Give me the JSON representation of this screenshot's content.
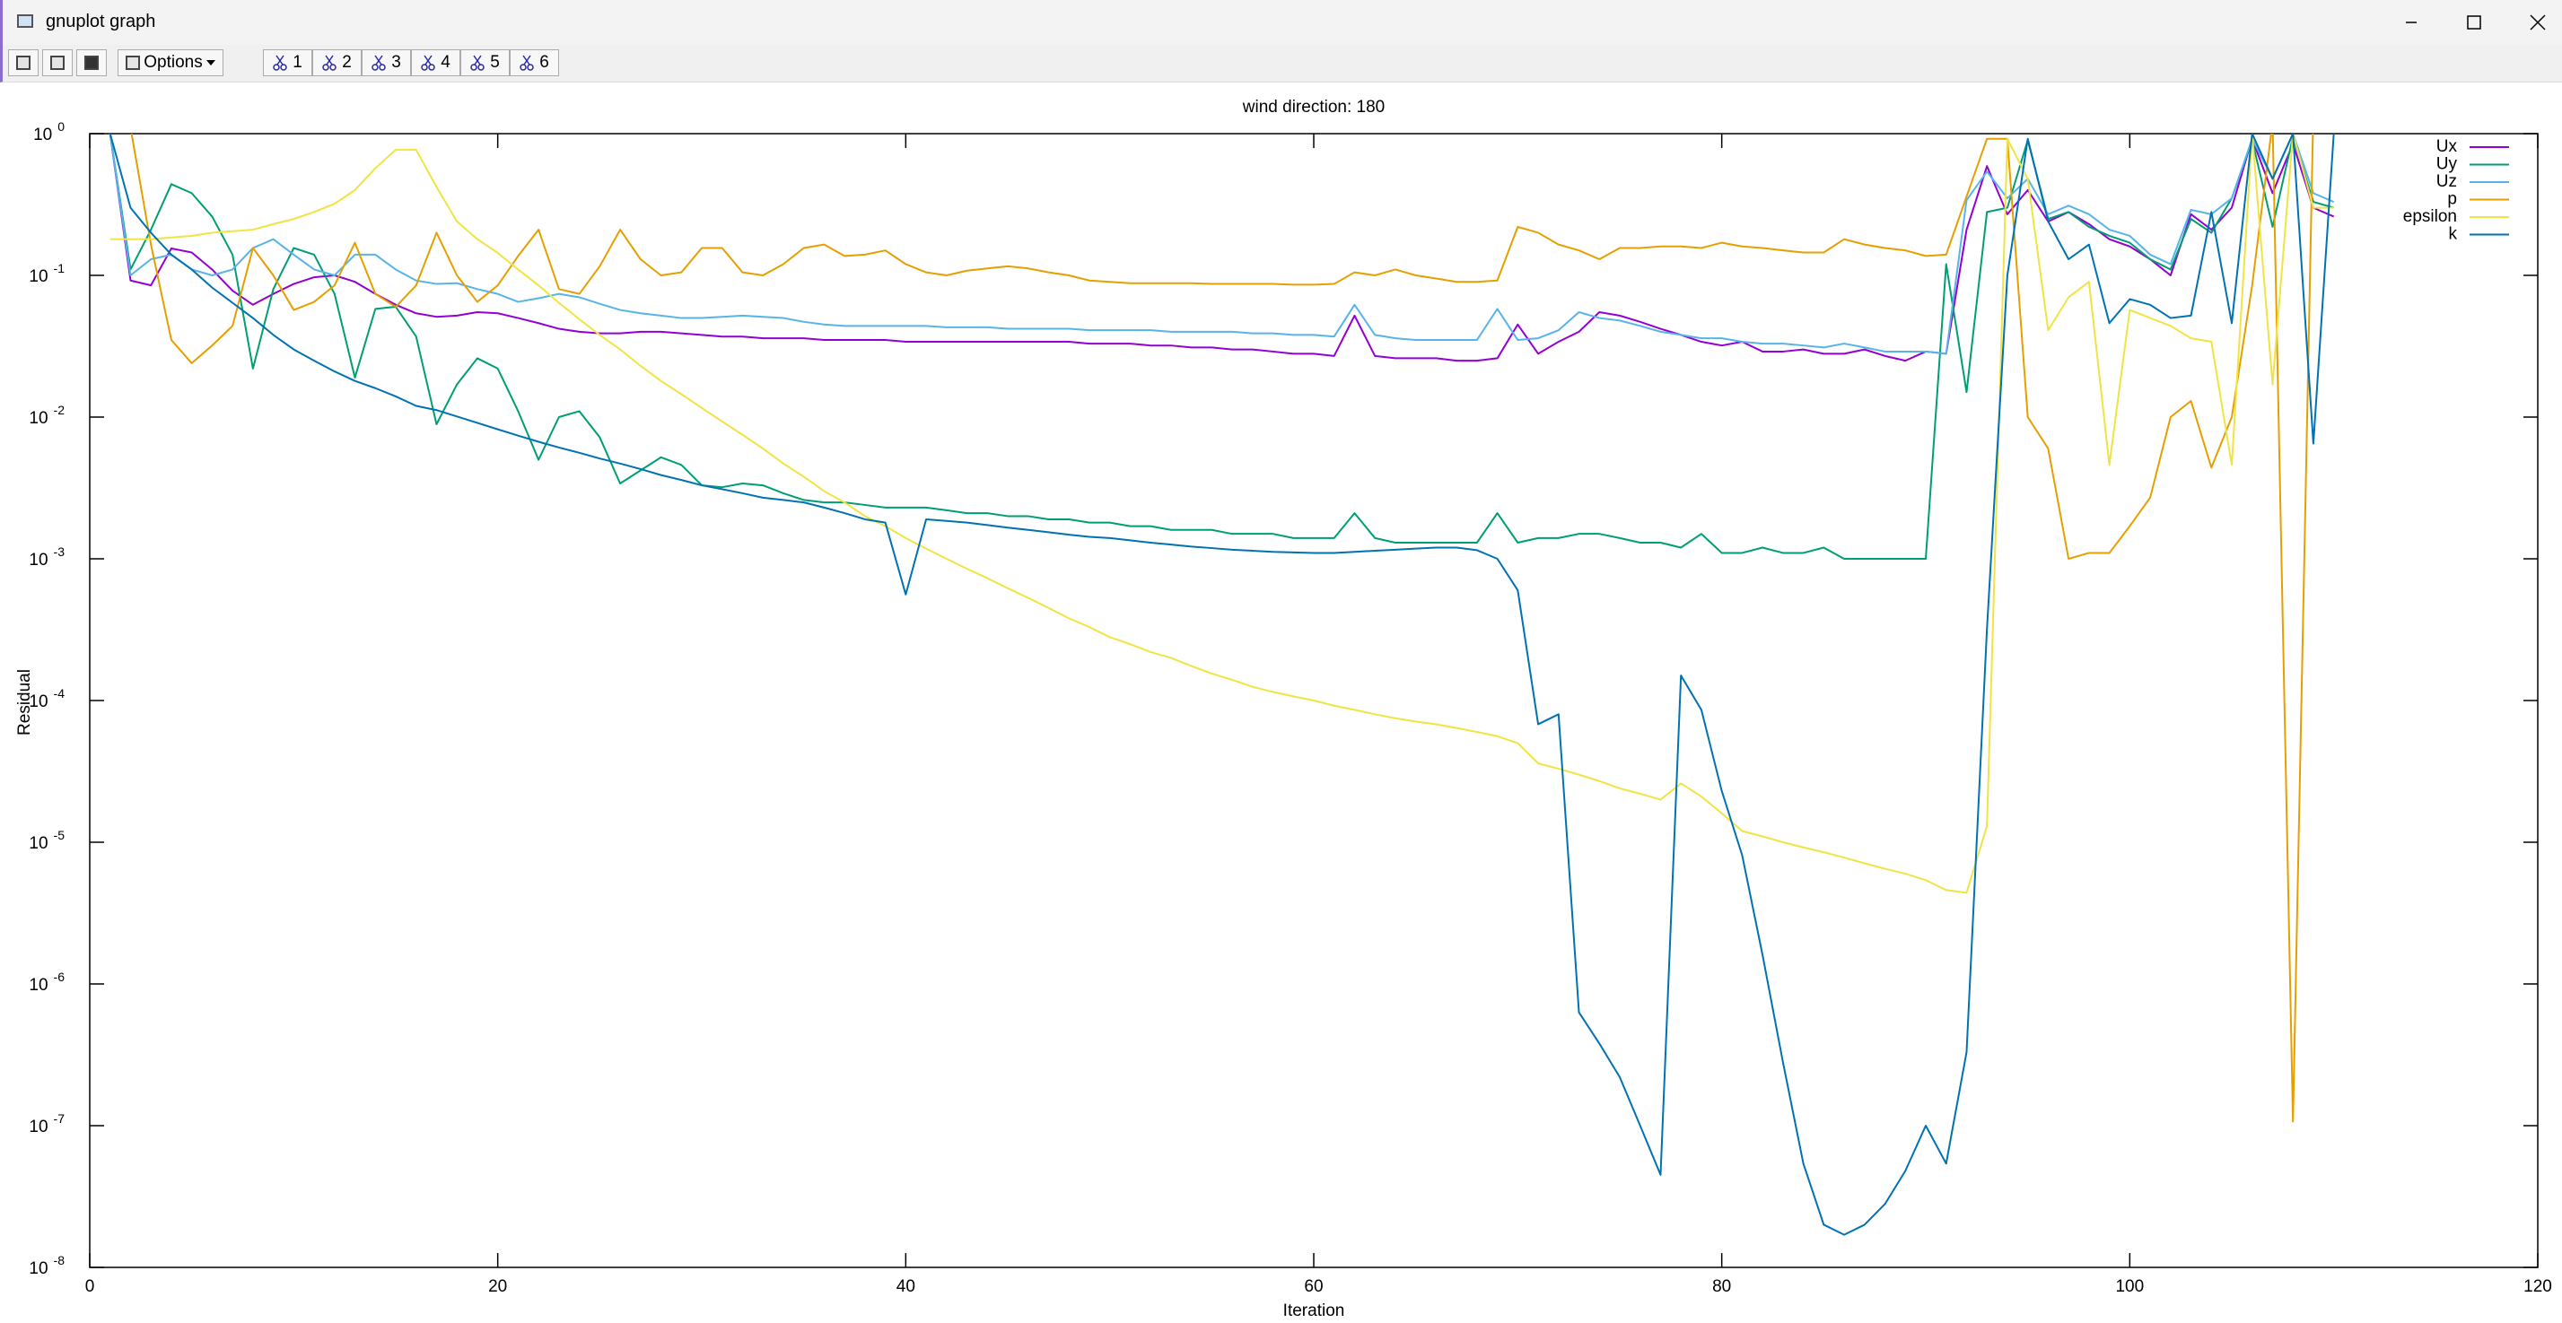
{
  "window": {
    "title": "gnuplot graph",
    "toolbar": {
      "options": "Options",
      "plots": [
        "1",
        "2",
        "3",
        "4",
        "5",
        "6"
      ]
    }
  },
  "chart_data": {
    "type": "line",
    "title": "wind direction: 180",
    "x_label": "Iteration",
    "y_label": "Residual",
    "log_y": true,
    "grid": false,
    "legend": "top-right",
    "xlim": [
      0,
      120
    ],
    "xticks": [
      0,
      20,
      40,
      60,
      80,
      100,
      120
    ],
    "ylim": [
      1e-08,
      1
    ],
    "yticks": [
      {
        "value": 1,
        "label": "10",
        "exponent": 0
      },
      {
        "value": 0.1,
        "label": "10",
        "exponent": -1
      },
      {
        "value": 0.01,
        "label": "10",
        "exponent": -2
      },
      {
        "value": 0.001,
        "label": "10",
        "exponent": -3
      },
      {
        "value": 0.0001,
        "label": "10",
        "exponent": -4
      },
      {
        "value": 1e-05,
        "label": "10",
        "exponent": -5
      },
      {
        "value": 1e-06,
        "label": "10",
        "exponent": -6
      },
      {
        "value": 1e-07,
        "label": "10",
        "exponent": -7
      },
      {
        "value": 1e-08,
        "label": "10",
        "exponent": -8
      }
    ],
    "x": [
      1,
      2,
      3,
      4,
      5,
      6,
      7,
      8,
      9,
      10,
      11,
      12,
      13,
      14,
      15,
      16,
      17,
      18,
      19,
      20,
      21,
      22,
      23,
      24,
      25,
      26,
      27,
      28,
      29,
      30,
      31,
      32,
      33,
      34,
      35,
      36,
      37,
      38,
      39,
      40,
      41,
      42,
      43,
      44,
      45,
      46,
      47,
      48,
      49,
      50,
      51,
      52,
      53,
      54,
      55,
      56,
      57,
      58,
      59,
      60,
      61,
      62,
      63,
      64,
      65,
      66,
      67,
      68,
      69,
      70,
      71,
      72,
      73,
      74,
      75,
      76,
      77,
      78,
      79,
      80,
      81,
      82,
      83,
      84,
      85,
      86,
      87,
      88,
      89,
      90,
      91,
      92,
      93,
      94,
      95,
      96,
      97,
      98,
      99,
      100,
      101,
      102,
      103,
      104,
      105,
      106,
      107,
      108,
      109,
      110
    ],
    "series": [
      {
        "name": "Ux",
        "color": "#9400d3",
        "values": [
          1,
          0.092,
          0.085,
          0.155,
          0.145,
          0.11,
          0.078,
          0.062,
          0.074,
          0.087,
          0.097,
          0.1,
          0.09,
          0.074,
          0.062,
          0.054,
          0.051,
          0.052,
          0.055,
          0.054,
          0.05,
          0.046,
          0.042,
          0.04,
          0.039,
          0.039,
          0.04,
          0.04,
          0.039,
          0.038,
          0.037,
          0.037,
          0.036,
          0.036,
          0.036,
          0.035,
          0.035,
          0.035,
          0.035,
          0.034,
          0.034,
          0.034,
          0.034,
          0.034,
          0.034,
          0.034,
          0.034,
          0.034,
          0.033,
          0.033,
          0.033,
          0.032,
          0.032,
          0.031,
          0.031,
          0.03,
          0.03,
          0.029,
          0.028,
          0.028,
          0.027,
          0.052,
          0.027,
          0.026,
          0.026,
          0.026,
          0.025,
          0.025,
          0.026,
          0.045,
          0.028,
          0.034,
          0.04,
          0.055,
          0.052,
          0.047,
          0.042,
          0.038,
          0.034,
          0.032,
          0.034,
          0.029,
          0.029,
          0.03,
          0.028,
          0.028,
          0.03,
          0.027,
          0.025,
          0.029,
          0.028,
          0.21,
          0.59,
          0.27,
          0.4,
          0.24,
          0.28,
          0.23,
          0.18,
          0.16,
          0.13,
          0.1,
          0.27,
          0.21,
          0.3,
          0.92,
          0.38,
          0.85,
          0.3,
          0.26
        ]
      },
      {
        "name": "Uy",
        "color": "#009e73",
        "values": [
          1,
          0.11,
          0.21,
          0.44,
          0.38,
          0.26,
          0.14,
          0.022,
          0.08,
          0.156,
          0.14,
          0.074,
          0.019,
          0.058,
          0.06,
          0.037,
          0.0089,
          0.017,
          0.026,
          0.022,
          0.011,
          0.005,
          0.01,
          0.011,
          0.0072,
          0.0034,
          0.0042,
          0.0052,
          0.0046,
          0.0033,
          0.0032,
          0.0034,
          0.0033,
          0.0029,
          0.0026,
          0.0025,
          0.0025,
          0.0024,
          0.0023,
          0.0023,
          0.0023,
          0.0022,
          0.0021,
          0.0021,
          0.002,
          0.002,
          0.0019,
          0.0019,
          0.0018,
          0.0018,
          0.0017,
          0.0017,
          0.0016,
          0.0016,
          0.0016,
          0.0015,
          0.0015,
          0.0015,
          0.0014,
          0.0014,
          0.0014,
          0.0021,
          0.0014,
          0.0013,
          0.0013,
          0.0013,
          0.0013,
          0.0013,
          0.0021,
          0.0013,
          0.0014,
          0.0014,
          0.0015,
          0.0015,
          0.0014,
          0.0013,
          0.0013,
          0.0012,
          0.0015,
          0.0011,
          0.0011,
          0.0012,
          0.0011,
          0.0011,
          0.0012,
          0.001,
          0.001,
          0.001,
          0.001,
          0.001,
          0.12,
          0.015,
          0.28,
          0.3,
          0.9,
          0.25,
          0.28,
          0.22,
          0.19,
          0.17,
          0.13,
          0.11,
          0.25,
          0.2,
          0.35,
          0.9,
          0.22,
          0.95,
          0.33,
          0.3
        ]
      },
      {
        "name": "Uz",
        "color": "#56b4e9",
        "values": [
          1,
          0.1,
          0.13,
          0.14,
          0.11,
          0.1,
          0.11,
          0.156,
          0.18,
          0.14,
          0.11,
          0.1,
          0.14,
          0.14,
          0.11,
          0.092,
          0.087,
          0.088,
          0.08,
          0.074,
          0.065,
          0.069,
          0.074,
          0.07,
          0.063,
          0.057,
          0.054,
          0.052,
          0.05,
          0.05,
          0.051,
          0.052,
          0.051,
          0.05,
          0.047,
          0.045,
          0.044,
          0.044,
          0.044,
          0.044,
          0.044,
          0.043,
          0.043,
          0.043,
          0.042,
          0.042,
          0.042,
          0.042,
          0.041,
          0.041,
          0.041,
          0.041,
          0.04,
          0.04,
          0.04,
          0.04,
          0.039,
          0.039,
          0.038,
          0.038,
          0.037,
          0.062,
          0.038,
          0.036,
          0.035,
          0.035,
          0.035,
          0.035,
          0.058,
          0.035,
          0.036,
          0.041,
          0.055,
          0.05,
          0.048,
          0.044,
          0.04,
          0.038,
          0.036,
          0.036,
          0.034,
          0.033,
          0.033,
          0.032,
          0.031,
          0.033,
          0.031,
          0.029,
          0.029,
          0.029,
          0.028,
          0.34,
          0.54,
          0.35,
          0.48,
          0.27,
          0.31,
          0.27,
          0.21,
          0.19,
          0.14,
          0.12,
          0.29,
          0.27,
          0.35,
          0.92,
          0.48,
          1,
          0.38,
          0.33
        ]
      },
      {
        "name": "p",
        "color": "#e69f00",
        "values": [
          1.2,
          1.1,
          0.165,
          0.035,
          0.024,
          0.032,
          0.044,
          0.156,
          0.1,
          0.057,
          0.065,
          0.085,
          0.17,
          0.074,
          0.06,
          0.085,
          0.2,
          0.1,
          0.065,
          0.085,
          0.137,
          0.21,
          0.08,
          0.074,
          0.116,
          0.21,
          0.13,
          0.1,
          0.105,
          0.156,
          0.156,
          0.105,
          0.1,
          0.12,
          0.156,
          0.165,
          0.137,
          0.14,
          0.15,
          0.12,
          0.105,
          0.1,
          0.108,
          0.112,
          0.116,
          0.112,
          0.105,
          0.1,
          0.092,
          0.09,
          0.088,
          0.088,
          0.088,
          0.088,
          0.087,
          0.087,
          0.087,
          0.087,
          0.086,
          0.086,
          0.087,
          0.105,
          0.1,
          0.11,
          0.1,
          0.095,
          0.09,
          0.09,
          0.092,
          0.22,
          0.2,
          0.165,
          0.15,
          0.13,
          0.156,
          0.156,
          0.16,
          0.16,
          0.156,
          0.17,
          0.16,
          0.156,
          0.15,
          0.145,
          0.145,
          0.18,
          0.165,
          0.156,
          0.15,
          0.137,
          0.14,
          0.36,
          0.92,
          0.92,
          0.01,
          0.006,
          0.001,
          0.0011,
          0.0011,
          0.0017,
          0.0027,
          0.01,
          0.013,
          0.0044,
          0.01,
          0.085,
          1.2,
          1.07e-07,
          1.5,
          2
        ]
      },
      {
        "name": "epsilon",
        "color": "#f0e442",
        "values": [
          0.18,
          0.18,
          0.18,
          0.185,
          0.19,
          0.2,
          0.205,
          0.21,
          0.23,
          0.25,
          0.28,
          0.32,
          0.4,
          0.57,
          0.77,
          0.77,
          0.42,
          0.24,
          0.18,
          0.144,
          0.11,
          0.085,
          0.064,
          0.049,
          0.038,
          0.03,
          0.023,
          0.018,
          0.0145,
          0.0116,
          0.0093,
          0.0075,
          0.006,
          0.0047,
          0.0038,
          0.003,
          0.0025,
          0.002,
          0.0017,
          0.0014,
          0.00118,
          0.001,
          0.00085,
          0.00073,
          0.00062,
          0.00053,
          0.00045,
          0.00038,
          0.00033,
          0.00028,
          0.00025,
          0.00022,
          0.0002,
          0.000175,
          0.000155,
          0.00014,
          0.000125,
          0.000115,
          0.000107,
          0.0001,
          9.2e-05,
          8.6e-05,
          8e-05,
          7.5e-05,
          7.1e-05,
          6.8e-05,
          6.4e-05,
          6e-05,
          5.6e-05,
          5e-05,
          3.6e-05,
          3.3e-05,
          3e-05,
          2.7e-05,
          2.4e-05,
          2.2e-05,
          2e-05,
          2.6e-05,
          2.1e-05,
          1.6e-05,
          1.2e-05,
          1.1e-05,
          1e-05,
          9.2e-06,
          8.5e-06,
          7.8e-06,
          7.1e-06,
          6.5e-06,
          6e-06,
          5.4e-06,
          4.6e-06,
          4.4e-06,
          1.3e-05,
          0.92,
          0.48,
          0.041,
          0.07,
          0.09,
          0.0046,
          0.057,
          0.05,
          0.044,
          0.036,
          0.034,
          0.0046,
          1,
          0.017,
          1,
          0.3,
          0.3
        ]
      },
      {
        "name": "k",
        "color": "#0072b2",
        "values": [
          1,
          0.3,
          0.2,
          0.14,
          0.11,
          0.082,
          0.064,
          0.05,
          0.038,
          0.03,
          0.025,
          0.021,
          0.018,
          0.016,
          0.014,
          0.012,
          0.0112,
          0.0101,
          0.0091,
          0.0082,
          0.0074,
          0.0067,
          0.0061,
          0.0056,
          0.0051,
          0.0047,
          0.0043,
          0.0039,
          0.0036,
          0.0033,
          0.0031,
          0.0029,
          0.0027,
          0.0026,
          0.0025,
          0.0023,
          0.0021,
          0.0019,
          0.0018,
          0.00056,
          0.0019,
          0.00185,
          0.0018,
          0.00173,
          0.00166,
          0.0016,
          0.00154,
          0.00148,
          0.00143,
          0.0014,
          0.00135,
          0.0013,
          0.00126,
          0.00122,
          0.00119,
          0.00116,
          0.00114,
          0.00112,
          0.00111,
          0.0011,
          0.0011,
          0.00112,
          0.00114,
          0.00116,
          0.00118,
          0.0012,
          0.0012,
          0.00115,
          0.001,
          0.0006,
          6.8e-05,
          8e-05,
          6.3e-07,
          3.8e-07,
          2.2e-07,
          1e-07,
          4.5e-08,
          0.00015,
          8.6e-05,
          2.3e-05,
          8.1e-06,
          1.6e-06,
          2.8e-07,
          5.4e-08,
          2e-08,
          1.7e-08,
          2e-08,
          2.8e-08,
          4.8e-08,
          1e-07,
          5.4e-08,
          3.3e-07,
          0.00032,
          0.1,
          0.92,
          0.24,
          0.13,
          0.165,
          0.046,
          0.068,
          0.062,
          0.05,
          0.052,
          0.28,
          0.046,
          1,
          0.48,
          1,
          0.0065,
          1
        ]
      }
    ]
  }
}
